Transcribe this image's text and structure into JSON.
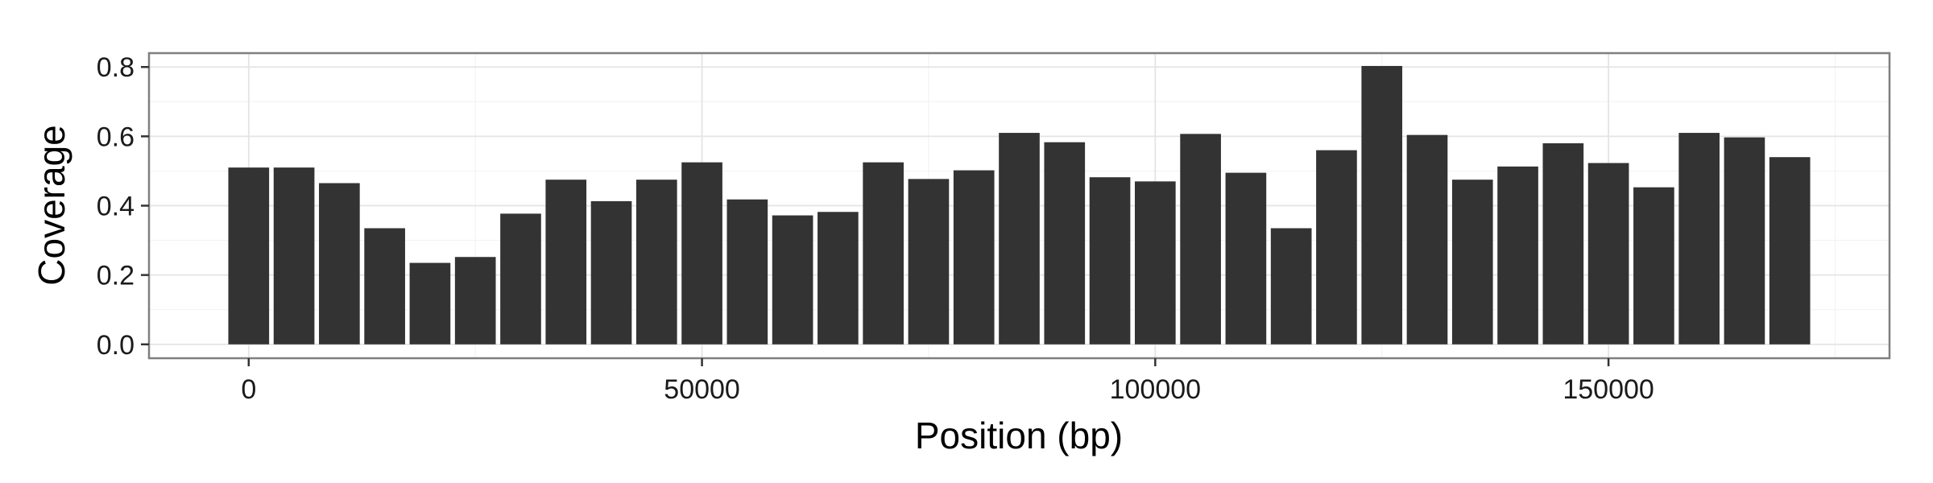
{
  "chart_data": {
    "type": "bar",
    "title": "",
    "xlabel": "Position (bp)",
    "ylabel": "Coverage",
    "xlim": [
      -11000,
      181000
    ],
    "ylim": [
      -0.04,
      0.84
    ],
    "x_ticks": [
      0,
      50000,
      100000,
      150000
    ],
    "x_tick_labels": [
      "0",
      "50000",
      "100000",
      "150000"
    ],
    "y_ticks": [
      0.0,
      0.2,
      0.4,
      0.6,
      0.8
    ],
    "y_tick_labels": [
      "0.0",
      "0.2",
      "0.4",
      "0.6",
      "0.8"
    ],
    "grid": true,
    "bar_color": "#333333",
    "bin_width": 5000,
    "x": [
      0,
      5000,
      10000,
      15000,
      20000,
      25000,
      30000,
      35000,
      40000,
      45000,
      50000,
      55000,
      60000,
      65000,
      70000,
      75000,
      80000,
      85000,
      90000,
      95000,
      100000,
      105000,
      110000,
      115000,
      120000,
      125000,
      130000,
      135000,
      140000,
      145000,
      150000,
      155000,
      160000,
      165000,
      170000
    ],
    "values": [
      0.51,
      0.51,
      0.465,
      0.335,
      0.235,
      0.252,
      0.377,
      0.475,
      0.413,
      0.475,
      0.525,
      0.418,
      0.372,
      0.382,
      0.525,
      0.477,
      0.502,
      0.61,
      0.583,
      0.482,
      0.47,
      0.607,
      0.495,
      0.335,
      0.56,
      0.803,
      0.604,
      0.475,
      0.513,
      0.58,
      0.523,
      0.453,
      0.61,
      0.597,
      0.54
    ]
  }
}
